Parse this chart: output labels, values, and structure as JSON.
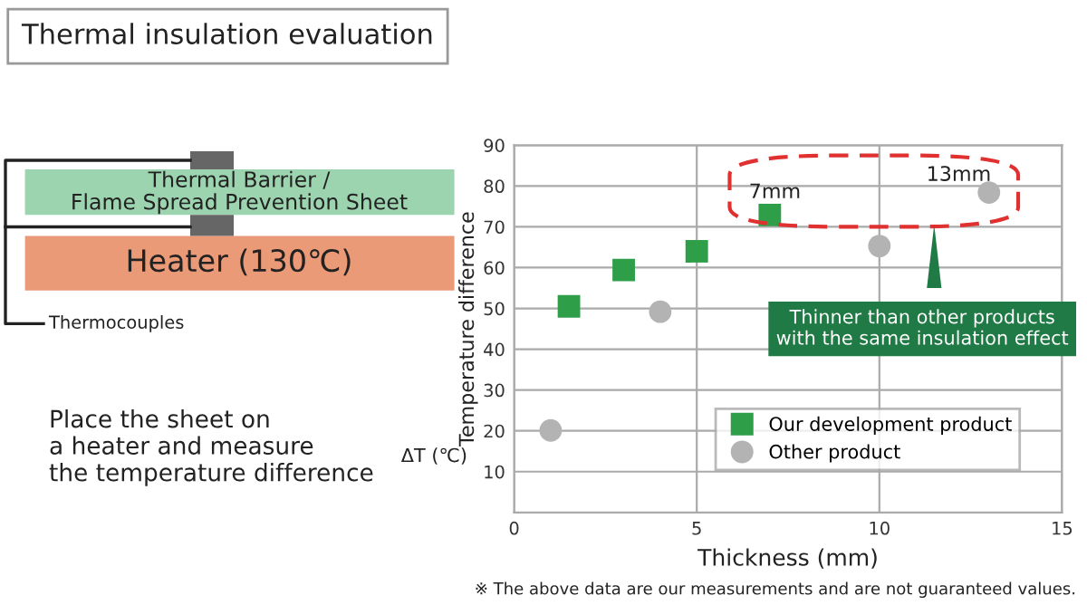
{
  "chart_data": {
    "type": "scatter",
    "title": "Thermal insulation evaluation",
    "xlabel": "Thickness (mm)",
    "ylabel": "Temperature difference",
    "xlim": [
      0,
      15
    ],
    "xticks": [
      0,
      5,
      10,
      15
    ],
    "ylim": [
      0,
      90
    ],
    "yticks": [
      10,
      20,
      30,
      40,
      50,
      60,
      70,
      80,
      90
    ],
    "grid": true,
    "legend": "bottom right",
    "series": [
      {
        "name": "Our development product",
        "color": "#2e9e48",
        "marker": "square",
        "x": [
          1.5,
          3.0,
          5.0,
          7.0
        ],
        "values": [
          50.5,
          59.4,
          64,
          72.9
        ]
      },
      {
        "name": "Other product",
        "color": "#b3b3b3",
        "marker": "circle",
        "x": [
          1.0,
          4.0,
          10.0,
          13.0
        ],
        "values": [
          20.1,
          49.2,
          65.3,
          78.4
        ]
      }
    ],
    "annotations": [
      {
        "text": "7mm",
        "x": 7.0,
        "y": 72.9
      },
      {
        "text": "13mm",
        "x": 13.0,
        "y": 78.4
      },
      "Thinner than other products\nwith the same insulation effect",
      "ΔT (℃)",
      "Thermal Barrier /\nFlame Spread Prevention Sheet",
      "Heater (130℃)",
      "Thermocouples",
      "Place the sheet on\na heater and measure\nthe temperature difference",
      "※ The above data are our measurements and are not guaranteed values."
    ]
  }
}
